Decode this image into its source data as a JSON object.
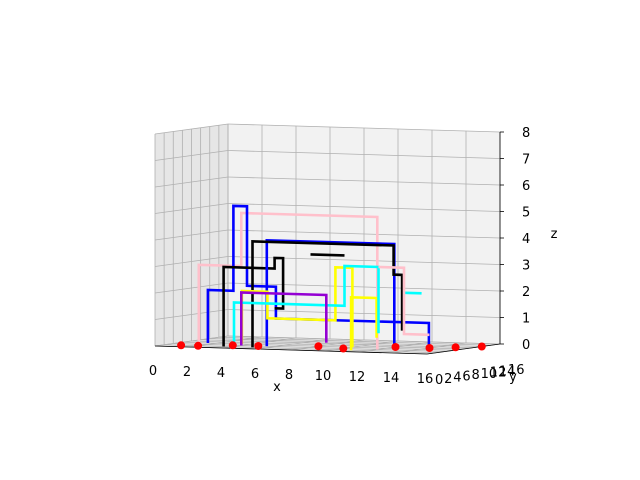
{
  "chart_data": {
    "type": "3d-line",
    "title": "",
    "xlabel": "x",
    "ylabel": "y",
    "zlabel": "z",
    "xlim": [
      0,
      16
    ],
    "ylim": [
      0,
      16
    ],
    "zlim": [
      0,
      8
    ],
    "x_ticks": [
      "0",
      "2",
      "4",
      "6",
      "8",
      "10",
      "12",
      "14",
      "16"
    ],
    "y_ticks": [
      "0",
      "2",
      "4",
      "6",
      "8",
      "10",
      "12",
      "14",
      "16"
    ],
    "z_ticks": [
      "0",
      "1",
      "2",
      "3",
      "4",
      "5",
      "6",
      "7",
      "8"
    ],
    "grid": true,
    "colors": {
      "blue": "#0000ff",
      "black": "#000000",
      "pink": "#ffc0cb",
      "cyan": "#00ffff",
      "yellow": "#ffff00",
      "purple": "#9400d3",
      "red": "#ff0000",
      "crimson": "#dc143c"
    },
    "series": [
      {
        "color": "#ffc0cb",
        "points": [
          [
            1.5,
            4,
            0
          ],
          [
            1.5,
            4,
            3
          ],
          [
            4,
            4,
            3
          ],
          [
            4,
            4,
            4
          ],
          [
            4,
            4,
            5
          ],
          [
            12,
            4,
            5
          ],
          [
            12,
            4,
            0
          ]
        ]
      },
      {
        "color": "#0000ff",
        "points": [
          [
            1.5,
            6,
            0
          ],
          [
            1.5,
            6,
            2
          ],
          [
            3,
            6,
            2
          ],
          [
            3,
            6,
            5.2
          ],
          [
            3.8,
            6,
            5.2
          ],
          [
            3.8,
            6,
            2.2
          ],
          [
            5.5,
            6,
            2.2
          ],
          [
            5.5,
            6,
            1
          ],
          [
            14.5,
            6,
            1
          ],
          [
            14.5,
            6,
            0
          ]
        ]
      },
      {
        "color": "#000000",
        "points": [
          [
            3.5,
            2,
            0
          ],
          [
            3.5,
            2,
            3
          ],
          [
            6.5,
            2,
            3
          ],
          [
            6.5,
            2,
            3.4
          ],
          [
            7,
            2,
            3.4
          ],
          [
            7,
            2,
            1.5
          ],
          [
            6.5,
            2,
            1.5
          ]
        ]
      },
      {
        "color": "#000000",
        "points": [
          [
            7,
            8,
            3.4
          ],
          [
            9,
            8,
            3.4
          ]
        ]
      },
      {
        "color": "#0000ff",
        "points": [
          [
            5.5,
            4,
            0
          ],
          [
            5.5,
            4,
            4
          ],
          [
            13,
            4,
            4
          ],
          [
            13,
            4,
            0
          ]
        ]
      },
      {
        "color": "#000000",
        "points": [
          [
            5.2,
            2,
            0
          ],
          [
            5.2,
            2,
            4
          ],
          [
            13.5,
            2,
            4
          ],
          [
            13.5,
            2,
            2.9
          ],
          [
            14,
            2,
            2.9
          ],
          [
            14,
            2,
            0.8
          ]
        ]
      },
      {
        "color": "#ffff00",
        "points": [
          [
            3.5,
            6,
            0
          ],
          [
            3.5,
            6,
            2
          ],
          [
            5,
            6,
            2
          ],
          [
            5,
            6,
            1
          ],
          [
            9,
            6,
            1
          ],
          [
            9,
            6,
            3
          ],
          [
            10,
            6,
            3
          ],
          [
            10,
            6,
            0
          ]
        ]
      },
      {
        "color": "#ffff00",
        "points": [
          [
            11,
            2,
            0
          ],
          [
            11,
            2,
            2
          ],
          [
            12.5,
            2,
            2
          ],
          [
            12.5,
            2,
            0.5
          ]
        ]
      },
      {
        "color": "#00ffff",
        "points": [
          [
            2.5,
            8,
            0
          ],
          [
            2.5,
            8,
            1.5
          ],
          [
            9,
            8,
            1.5
          ],
          [
            9,
            8,
            3
          ],
          [
            11,
            8,
            3
          ],
          [
            11,
            8,
            0.5
          ]
        ]
      },
      {
        "color": "#00ffff",
        "points": [
          [
            12,
            10,
            2
          ],
          [
            13,
            10,
            2
          ]
        ]
      },
      {
        "color": "#9400d3",
        "points": [
          [
            4,
            4,
            0
          ],
          [
            4,
            4,
            2
          ],
          [
            9,
            4,
            2
          ],
          [
            9,
            4,
            0.2
          ]
        ]
      },
      {
        "color": "#ffc0cb",
        "points": [
          [
            11,
            8,
            3
          ],
          [
            12.5,
            8,
            3
          ],
          [
            12.5,
            8,
            0.5
          ],
          [
            14,
            8,
            0.5
          ]
        ]
      }
    ],
    "markers": {
      "color": "#ff0000",
      "points": [
        [
          1,
          2,
          0
        ],
        [
          2,
          2,
          0
        ],
        [
          3.5,
          4,
          0
        ],
        [
          5,
          4,
          0
        ],
        [
          8,
          6,
          0
        ],
        [
          10,
          4,
          0
        ],
        [
          12,
          8,
          0
        ],
        [
          14,
          8,
          0
        ],
        [
          15,
          10,
          0
        ],
        [
          16,
          12,
          0
        ]
      ]
    }
  }
}
